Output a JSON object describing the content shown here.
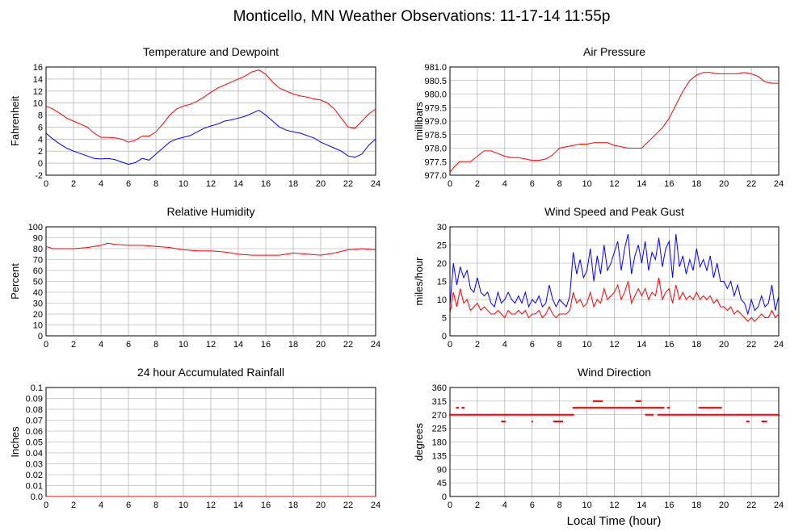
{
  "page": {
    "title": "Monticello, MN Weather Observations: 11-17-14 11:55p",
    "xlabel": "Local Time (hour)"
  },
  "colors": {
    "red": "#ff0000",
    "blue": "#0000ff",
    "grid": "#a0a0a0",
    "axis": "#000000"
  },
  "chart_data": [
    {
      "id": "temp",
      "type": "line",
      "title": "Temperature and Dewpoint",
      "ylabel": "Fahrenheit",
      "xlim": [
        0,
        24
      ],
      "ylim": [
        -2,
        16
      ],
      "yticks": [
        "-2",
        "0",
        "2",
        "4",
        "6",
        "8",
        "10",
        "12",
        "14",
        "16"
      ],
      "xticks": [
        "0",
        "2",
        "4",
        "6",
        "8",
        "10",
        "12",
        "14",
        "16",
        "18",
        "20",
        "22",
        "24"
      ],
      "series": [
        {
          "color": "#ff0000",
          "x": [
            0,
            0.5,
            1,
            1.5,
            2,
            2.5,
            3,
            3.5,
            4,
            4.5,
            5,
            5.5,
            6,
            6.5,
            7,
            7.5,
            8,
            8.5,
            9,
            9.5,
            10,
            10.5,
            11,
            11.5,
            12,
            12.5,
            13,
            13.5,
            14,
            14.5,
            15,
            15.5,
            16,
            16.5,
            17,
            17.5,
            18,
            18.5,
            19,
            19.5,
            20,
            20.5,
            21,
            21.5,
            22,
            22.5,
            23,
            23.5,
            24
          ],
          "y": [
            9.5,
            9,
            8.3,
            7.5,
            7,
            6.5,
            6,
            5,
            4.3,
            4.3,
            4.2,
            4,
            3.5,
            3.8,
            4.5,
            4.5,
            5.2,
            6.5,
            8,
            9,
            9.5,
            9.8,
            10.3,
            11,
            11.8,
            12.5,
            13,
            13.5,
            14,
            14.5,
            15.2,
            15.5,
            14.8,
            13.5,
            12.5,
            12,
            11.5,
            11.2,
            11,
            10.7,
            10.5,
            10,
            9,
            7.5,
            6,
            5.8,
            7,
            8.2,
            9
          ]
        },
        {
          "color": "#0000ff",
          "x": [
            0,
            0.5,
            1,
            1.5,
            2,
            2.5,
            3,
            3.5,
            4,
            4.5,
            5,
            5.5,
            6,
            6.5,
            7,
            7.5,
            8,
            8.5,
            9,
            9.5,
            10,
            10.5,
            11,
            11.5,
            12,
            12.5,
            13,
            13.5,
            14,
            14.5,
            15,
            15.5,
            16,
            16.5,
            17,
            17.5,
            18,
            18.5,
            19,
            19.5,
            20,
            20.5,
            21,
            21.5,
            22,
            22.5,
            23,
            23.5,
            24
          ],
          "y": [
            5,
            4,
            3.2,
            2.5,
            2,
            1.6,
            1.2,
            0.8,
            0.7,
            0.8,
            0.6,
            0.2,
            -0.2,
            0.1,
            0.8,
            0.5,
            1.5,
            2.5,
            3.5,
            4,
            4.3,
            4.6,
            5.2,
            5.8,
            6.2,
            6.5,
            7,
            7.2,
            7.5,
            7.8,
            8.3,
            8.8,
            8,
            7,
            6,
            5.5,
            5.2,
            5,
            4.6,
            4.2,
            3.5,
            3,
            2.5,
            2,
            1.2,
            1,
            1.5,
            3,
            4
          ]
        }
      ]
    },
    {
      "id": "pressure",
      "type": "line",
      "title": "Air Pressure",
      "ylabel": "millibars",
      "xlim": [
        0,
        24
      ],
      "ylim": [
        977.0,
        981.0
      ],
      "yticks": [
        "977.0",
        "977.5",
        "978.0",
        "978.5",
        "979.0",
        "979.5",
        "980.0",
        "980.5",
        "981.0"
      ],
      "xticks": [
        "0",
        "2",
        "4",
        "6",
        "8",
        "10",
        "12",
        "14",
        "16",
        "18",
        "20",
        "22",
        "24"
      ],
      "series": [
        {
          "color": "#ff0000",
          "x": [
            0,
            0.3,
            0.7,
            1,
            1.5,
            2,
            2.5,
            3,
            3.5,
            4,
            4.5,
            5,
            5.5,
            6,
            6.5,
            7,
            7.5,
            8,
            8.5,
            9,
            9.5,
            10,
            10.5,
            11,
            11.5,
            12,
            12.5,
            13,
            13.5,
            14,
            14.5,
            15,
            15.5,
            16,
            16.5,
            17,
            17.5,
            18,
            18.5,
            19,
            19.5,
            20,
            20.5,
            21,
            21.5,
            22,
            22.5,
            23,
            23.5,
            24
          ],
          "y": [
            977.1,
            977.3,
            977.5,
            977.5,
            977.5,
            977.7,
            977.9,
            977.9,
            977.8,
            977.7,
            977.65,
            977.65,
            977.6,
            977.55,
            977.55,
            977.6,
            977.75,
            978.0,
            978.05,
            978.1,
            978.15,
            978.15,
            978.2,
            978.2,
            978.2,
            978.1,
            978.05,
            978.0,
            978.0,
            978.0,
            978.25,
            978.5,
            978.75,
            979.1,
            979.6,
            980.1,
            980.5,
            980.7,
            980.8,
            980.8,
            980.75,
            980.75,
            980.75,
            980.75,
            980.8,
            980.75,
            980.65,
            980.45,
            980.4,
            980.4
          ]
        }
      ]
    },
    {
      "id": "humidity",
      "type": "line",
      "title": "Relative Humidity",
      "ylabel": "Percent",
      "xlim": [
        0,
        24
      ],
      "ylim": [
        0,
        100
      ],
      "yticks": [
        "0",
        "10",
        "20",
        "30",
        "40",
        "50",
        "60",
        "70",
        "80",
        "90",
        "100"
      ],
      "xticks": [
        "0",
        "2",
        "4",
        "6",
        "8",
        "10",
        "12",
        "14",
        "16",
        "18",
        "20",
        "22",
        "24"
      ],
      "series": [
        {
          "color": "#ff0000",
          "x": [
            0,
            0.5,
            1,
            2,
            3,
            4,
            4.5,
            5,
            6,
            7,
            8,
            9,
            10,
            11,
            12,
            13,
            14,
            15,
            16,
            17,
            18,
            19,
            20,
            21,
            22,
            23,
            24
          ],
          "y": [
            82,
            80,
            80,
            80,
            81,
            83,
            85,
            84,
            83,
            83,
            82,
            81,
            79,
            78,
            78,
            77,
            75,
            74,
            74,
            74,
            76,
            75,
            74,
            76,
            79,
            80,
            79
          ]
        }
      ]
    },
    {
      "id": "wind",
      "type": "line",
      "title": "Wind Speed and Peak Gust",
      "ylabel": "miles/hour",
      "xlim": [
        0,
        24
      ],
      "ylim": [
        0,
        30
      ],
      "yticks": [
        "0",
        "5",
        "10",
        "15",
        "20",
        "25",
        "30"
      ],
      "xticks": [
        "0",
        "2",
        "4",
        "6",
        "8",
        "10",
        "12",
        "14",
        "16",
        "18",
        "20",
        "22",
        "24"
      ],
      "series": [
        {
          "color": "#0000ff",
          "x": [
            0,
            0.25,
            0.5,
            0.75,
            1,
            1.25,
            1.5,
            1.75,
            2,
            2.25,
            2.5,
            2.75,
            3,
            3.25,
            3.5,
            3.75,
            4,
            4.25,
            4.5,
            4.75,
            5,
            5.25,
            5.5,
            5.75,
            6,
            6.25,
            6.5,
            6.75,
            7,
            7.25,
            7.5,
            7.75,
            8,
            8.25,
            8.5,
            8.75,
            9,
            9.25,
            9.5,
            9.75,
            10,
            10.25,
            10.5,
            10.75,
            11,
            11.25,
            11.5,
            11.75,
            12,
            12.25,
            12.5,
            12.75,
            13,
            13.25,
            13.5,
            13.75,
            14,
            14.25,
            14.5,
            14.75,
            15,
            15.25,
            15.5,
            15.75,
            16,
            16.25,
            16.5,
            16.75,
            17,
            17.25,
            17.5,
            17.75,
            18,
            18.25,
            18.5,
            18.75,
            19,
            19.25,
            19.5,
            19.75,
            20,
            20.25,
            20.5,
            20.75,
            21,
            21.25,
            21.5,
            21.75,
            22,
            22.25,
            22.5,
            22.75,
            23,
            23.25,
            23.5,
            23.75,
            24
          ],
          "y": [
            8,
            20,
            14,
            19,
            16,
            18,
            13,
            12,
            16,
            12,
            11,
            12,
            9,
            8,
            12,
            9,
            10,
            12,
            10,
            9,
            11,
            9,
            12,
            8,
            10,
            9,
            11,
            8,
            9,
            14,
            10,
            8,
            10,
            9,
            8,
            11,
            23,
            17,
            21,
            16,
            18,
            24,
            15,
            22,
            17,
            25,
            18,
            20,
            23,
            26,
            18,
            24,
            28,
            17,
            22,
            25,
            20,
            26,
            18,
            23,
            21,
            27,
            19,
            24,
            26,
            16,
            28,
            19,
            22,
            17,
            21,
            18,
            24,
            19,
            21,
            18,
            22,
            16,
            20,
            15,
            15,
            13,
            15,
            11,
            14,
            10,
            9,
            6,
            10,
            7,
            8,
            11,
            8,
            9,
            14,
            7,
            11
          ]
        },
        {
          "color": "#ff0000",
          "x": [
            0,
            0.25,
            0.5,
            0.75,
            1,
            1.25,
            1.5,
            1.75,
            2,
            2.25,
            2.5,
            2.75,
            3,
            3.25,
            3.5,
            3.75,
            4,
            4.25,
            4.5,
            4.75,
            5,
            5.25,
            5.5,
            5.75,
            6,
            6.25,
            6.5,
            6.75,
            7,
            7.25,
            7.5,
            7.75,
            8,
            8.25,
            8.5,
            8.75,
            9,
            9.25,
            9.5,
            9.75,
            10,
            10.25,
            10.5,
            10.75,
            11,
            11.25,
            11.5,
            11.75,
            12,
            12.25,
            12.5,
            12.75,
            13,
            13.25,
            13.5,
            13.75,
            14,
            14.25,
            14.5,
            14.75,
            15,
            15.25,
            15.5,
            15.75,
            16,
            16.25,
            16.5,
            16.75,
            17,
            17.25,
            17.5,
            17.75,
            18,
            18.25,
            18.5,
            18.75,
            19,
            19.25,
            19.5,
            19.75,
            20,
            20.25,
            20.5,
            20.75,
            21,
            21.25,
            21.5,
            21.75,
            22,
            22.25,
            22.5,
            22.75,
            23,
            23.25,
            23.5,
            23.75,
            24
          ],
          "y": [
            6,
            12,
            8,
            13,
            9,
            10,
            7,
            8,
            9,
            7,
            8,
            7,
            6,
            6,
            7,
            6,
            5,
            7,
            6,
            6,
            7,
            6,
            7,
            5,
            6,
            6,
            7,
            5,
            6,
            8,
            6,
            5,
            6,
            6,
            6,
            7,
            12,
            9,
            10,
            8,
            9,
            12,
            8,
            10,
            9,
            13,
            10,
            11,
            12,
            14,
            10,
            12,
            15,
            9,
            11,
            13,
            11,
            13,
            10,
            12,
            11,
            16,
            10,
            12,
            13,
            9,
            14,
            10,
            12,
            10,
            11,
            10,
            12,
            10,
            11,
            10,
            11,
            9,
            10,
            8,
            8,
            7,
            8,
            6,
            7,
            6,
            5,
            4,
            5,
            4,
            5,
            6,
            5,
            5,
            7,
            5,
            6
          ]
        }
      ]
    },
    {
      "id": "rain",
      "type": "line",
      "title": "24 hour Accumulated Rainfall",
      "ylabel": "Inches",
      "xlim": [
        0,
        24
      ],
      "ylim": [
        0,
        0.1
      ],
      "yticks": [
        "0.0",
        "0.01",
        "0.02",
        "0.03",
        "0.04",
        "0.05",
        "0.06",
        "0.07",
        "0.08",
        "0.09",
        "0.1"
      ],
      "xticks": [
        "0",
        "2",
        "4",
        "6",
        "8",
        "10",
        "12",
        "14",
        "16",
        "18",
        "20",
        "22",
        "24"
      ],
      "series": [
        {
          "color": "#ff0000",
          "x": [
            0,
            24
          ],
          "y": [
            0,
            0
          ]
        }
      ]
    },
    {
      "id": "direction",
      "type": "scatter",
      "title": "Wind Direction",
      "ylabel": "degrees",
      "xlim": [
        0,
        24
      ],
      "ylim": [
        0,
        360
      ],
      "yticks": [
        "0",
        "45",
        "90",
        "135",
        "180",
        "225",
        "270",
        "315",
        "360"
      ],
      "xticks": [
        "0",
        "2",
        "4",
        "6",
        "8",
        "10",
        "12",
        "14",
        "16",
        "18",
        "20",
        "22",
        "24"
      ],
      "series": [
        {
          "color": "#ff0000",
          "points": [
            {
              "from": 0,
              "to": 9.0,
              "y": 270
            },
            {
              "from": 9.0,
              "to": 15.2,
              "y": 293
            },
            {
              "from": 15.2,
              "to": 24,
              "y": 270
            },
            {
              "from": 0.5,
              "to": 0.6,
              "y": 293
            },
            {
              "from": 0.9,
              "to": 1.0,
              "y": 293
            },
            {
              "from": 3.8,
              "to": 4.0,
              "y": 248
            },
            {
              "from": 6.0,
              "to": 6.05,
              "y": 248
            },
            {
              "from": 7.6,
              "to": 8.2,
              "y": 248
            },
            {
              "from": 10.5,
              "to": 11.1,
              "y": 315
            },
            {
              "from": 13.6,
              "to": 13.9,
              "y": 315
            },
            {
              "from": 14.3,
              "to": 14.8,
              "y": 270
            },
            {
              "from": 15.2,
              "to": 15.6,
              "y": 293
            },
            {
              "from": 15.9,
              "to": 16.0,
              "y": 293
            },
            {
              "from": 18.2,
              "to": 19.8,
              "y": 293
            },
            {
              "from": 21.7,
              "to": 21.8,
              "y": 248
            },
            {
              "from": 22.8,
              "to": 23.1,
              "y": 248
            }
          ]
        }
      ]
    }
  ]
}
